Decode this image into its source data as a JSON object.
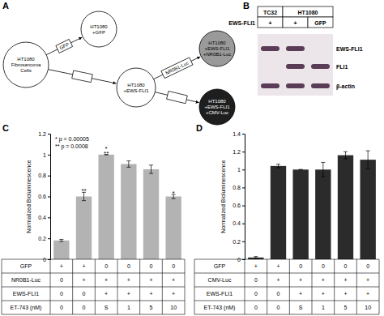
{
  "panel_a": {
    "label": "A",
    "nodes": [
      {
        "lines": [
          "HT1080",
          "Fibrosarcoma",
          "Cells"
        ],
        "color": "#ffffff"
      },
      {
        "lines": [
          "HT1080",
          "+GFP"
        ],
        "color": "#ffffff"
      },
      {
        "lines": [
          "HT1080",
          "+EWS-FLI1"
        ],
        "color": "#ffffff"
      },
      {
        "lines": [
          "HT1080",
          "+EWS-FLI1",
          "+NR0B1-Luc"
        ],
        "color": "#9a9a9a"
      },
      {
        "lines": [
          "HT1080",
          "+EWS-FLI1",
          "+CMV-Luc"
        ],
        "color": "#1e1e1e"
      }
    ],
    "edges": [
      {
        "from": 0,
        "to": 1,
        "label": "GFP"
      },
      {
        "from": 0,
        "to": 2
      },
      {
        "from": 2,
        "to": 3,
        "label": "NR0B1-Luc"
      },
      {
        "from": 2,
        "to": 4
      }
    ]
  },
  "panel_b": {
    "label": "B",
    "groups": [
      {
        "label": "TC32",
        "lanes": 1
      },
      {
        "label": "HT1080",
        "lanes": 2
      }
    ],
    "row_label": "EWS-FLI1",
    "lane_labels": [
      "+",
      "+",
      "GFP"
    ],
    "bands": [
      {
        "label": "EWS-FLI1",
        "present": [
          true,
          true,
          false
        ]
      },
      {
        "label": "FLI1",
        "present": [
          false,
          true,
          true
        ]
      },
      {
        "label": "β-actin",
        "present": [
          true,
          true,
          true
        ]
      }
    ]
  },
  "chart_data": [
    {
      "type": "bar",
      "panel_label": "C",
      "y_label": "Normalized Bioluminescence",
      "values": [
        0.18,
        0.6,
        1.0,
        0.91,
        0.86,
        0.6
      ],
      "errors": [
        0.01,
        0.04,
        0,
        0.03,
        0.04,
        0.02
      ],
      "color": "#b3b3b3",
      "ylim": [
        0,
        1.2
      ],
      "yticks": [
        0,
        0.2,
        0.4,
        0.6,
        0.8,
        1,
        1.2
      ],
      "annotations": [
        "* p = 0.00005",
        "** p = 0.0008"
      ],
      "bar_annotations": [
        [],
        [
          "**"
        ],
        [
          "*",
          "**"
        ],
        [],
        [],
        [
          "*"
        ]
      ],
      "table": [
        {
          "label": "GFP",
          "cells": [
            "+",
            "+",
            "0",
            "0",
            "0",
            "0"
          ]
        },
        {
          "label": "NR0B1-Luc",
          "cells": [
            "0",
            "+",
            "+",
            "+",
            "+",
            "+"
          ]
        },
        {
          "label": "EWS-FLI1",
          "cells": [
            "0",
            "0",
            "+",
            "+",
            "+",
            "+"
          ]
        },
        {
          "label": "ET-743 (nM)",
          "cells": [
            "0",
            "0",
            "S",
            "1",
            "5",
            "10"
          ]
        }
      ]
    },
    {
      "type": "bar",
      "panel_label": "D",
      "y_label": "Normalized Bioluminescence",
      "values": [
        0.02,
        1.04,
        1.0,
        1.0,
        1.16,
        1.11
      ],
      "errors": [
        0.01,
        0.02,
        0,
        0.08,
        0.04,
        0.1
      ],
      "color": "#2b2b2b",
      "ylim": [
        0,
        1.4
      ],
      "yticks": [
        0,
        0.2,
        0.4,
        0.6,
        0.8,
        1,
        1.2,
        1.4
      ],
      "table": [
        {
          "label": "GFP",
          "cells": [
            "+",
            "+",
            "0",
            "0",
            "0",
            "0"
          ]
        },
        {
          "label": "CMV-Luc",
          "cells": [
            "0",
            "+",
            "+",
            "+",
            "+",
            "+"
          ]
        },
        {
          "label": "EWS-FLI1",
          "cells": [
            "0",
            "0",
            "+",
            "+",
            "+",
            "+"
          ]
        },
        {
          "label": "ET-743 (nM)",
          "cells": [
            "0",
            "0",
            "S",
            "1",
            "5",
            "10"
          ]
        }
      ]
    }
  ]
}
